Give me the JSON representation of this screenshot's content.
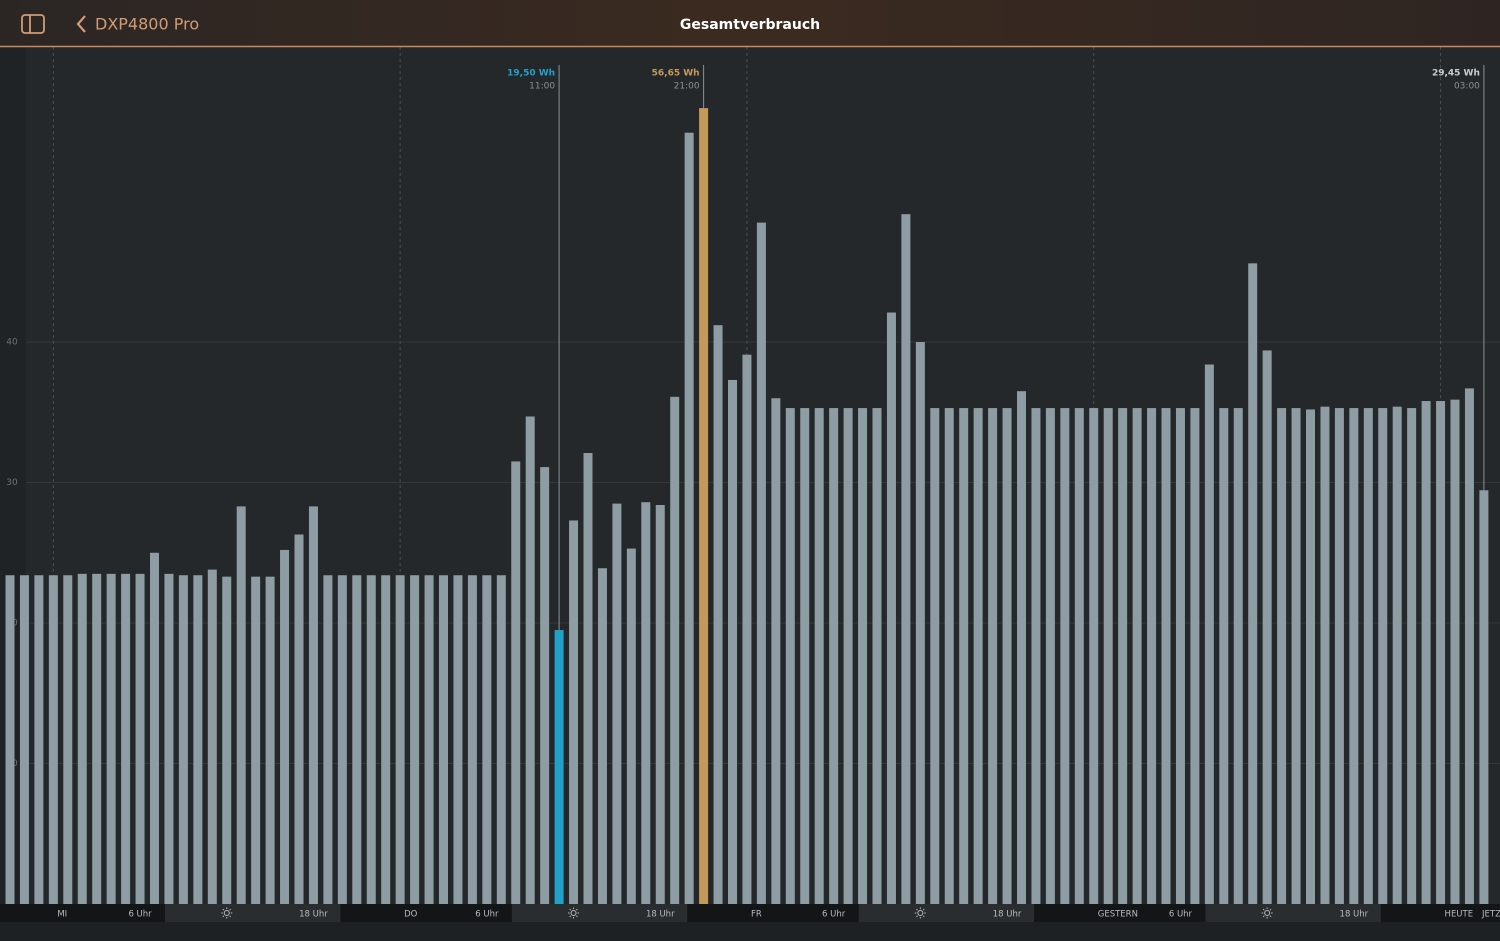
{
  "header": {
    "back_label": "DXP4800 Pro",
    "title": "Gesamtverbrauch"
  },
  "chart_data": {
    "type": "bar",
    "categories": [
      null,
      null,
      null,
      null,
      null,
      null,
      null,
      null,
      null,
      null,
      null,
      null,
      null,
      null,
      null,
      null,
      null,
      null,
      null,
      null,
      null,
      null,
      null,
      null,
      null,
      null,
      null,
      null,
      null,
      null,
      null,
      null,
      null,
      null,
      null,
      null,
      null,
      null,
      "11:00",
      null,
      null,
      null,
      null,
      null,
      null,
      null,
      null,
      null,
      "21:00",
      null,
      null,
      null,
      null,
      null,
      null,
      null,
      null,
      null,
      null,
      null,
      null,
      null,
      null,
      null,
      null,
      null,
      null,
      null,
      null,
      null,
      null,
      null,
      null,
      null,
      null,
      null,
      null,
      null,
      null,
      null,
      null,
      null,
      null,
      null,
      null,
      null,
      null,
      null,
      null,
      null,
      null,
      null,
      null,
      null,
      null,
      null,
      null,
      null,
      null,
      null,
      null,
      null,
      "03:00"
    ],
    "values": [
      23.4,
      23.4,
      23.4,
      23.4,
      23.4,
      23.5,
      23.5,
      23.5,
      23.5,
      23.5,
      25.0,
      23.5,
      23.4,
      23.4,
      23.8,
      23.3,
      28.3,
      23.3,
      23.3,
      25.2,
      26.3,
      28.3,
      23.4,
      23.4,
      23.4,
      23.4,
      23.4,
      23.4,
      23.4,
      23.4,
      23.4,
      23.4,
      23.4,
      23.4,
      23.4,
      31.5,
      34.7,
      31.1,
      19.5,
      27.3,
      32.1,
      23.9,
      28.5,
      25.3,
      28.6,
      28.4,
      36.1,
      54.9,
      56.65,
      41.2,
      37.3,
      39.1,
      48.5,
      36.0,
      35.3,
      35.3,
      35.3,
      35.3,
      35.3,
      35.3,
      35.3,
      42.1,
      49.1,
      40.0,
      35.3,
      35.3,
      35.3,
      35.3,
      35.3,
      35.3,
      36.5,
      35.3,
      35.3,
      35.3,
      35.3,
      35.3,
      35.3,
      35.3,
      35.3,
      35.3,
      35.3,
      35.3,
      35.3,
      38.4,
      35.3,
      35.3,
      45.6,
      39.4,
      35.3,
      35.3,
      35.2,
      35.4,
      35.3,
      35.3,
      35.3,
      35.3,
      35.4,
      35.3,
      35.8,
      35.8,
      35.9,
      36.7,
      29.45
    ],
    "value_labels": [
      null,
      null,
      null,
      null,
      null,
      null,
      null,
      null,
      null,
      null,
      null,
      null,
      null,
      null,
      null,
      null,
      null,
      null,
      null,
      null,
      null,
      null,
      null,
      null,
      null,
      null,
      null,
      null,
      null,
      null,
      null,
      null,
      null,
      null,
      null,
      null,
      null,
      null,
      "19,50 Wh",
      null,
      null,
      null,
      null,
      null,
      null,
      null,
      null,
      null,
      "56,65 Wh",
      null,
      null,
      null,
      null,
      null,
      null,
      null,
      null,
      null,
      null,
      null,
      null,
      null,
      null,
      null,
      null,
      null,
      null,
      null,
      null,
      null,
      null,
      null,
      null,
      null,
      null,
      null,
      null,
      null,
      null,
      null,
      null,
      null,
      null,
      null,
      null,
      null,
      null,
      null,
      null,
      null,
      null,
      null,
      null,
      null,
      null,
      null,
      null,
      null,
      null,
      null,
      null,
      null,
      "29,45 Wh"
    ],
    "color": "#8e9da4",
    "highlights": [
      {
        "index": 38,
        "color": "#22a1c8"
      },
      {
        "index": 48,
        "color": "#c39a5b"
      }
    ],
    "ylim": [
      0,
      61
    ],
    "yticks": [
      10,
      20,
      30,
      40
    ],
    "grid": true,
    "time_labels": [
      "MI",
      "6 Uhr",
      null,
      "18 Uhr",
      "DO",
      "6 Uhr",
      null,
      "18 Uhr",
      "FR",
      "6 Uhr",
      null,
      "18 Uhr",
      "GESTERN",
      "6 Uhr",
      null,
      "18 Uhr",
      "HEUTE"
    ],
    "now_label": "JETZT"
  }
}
